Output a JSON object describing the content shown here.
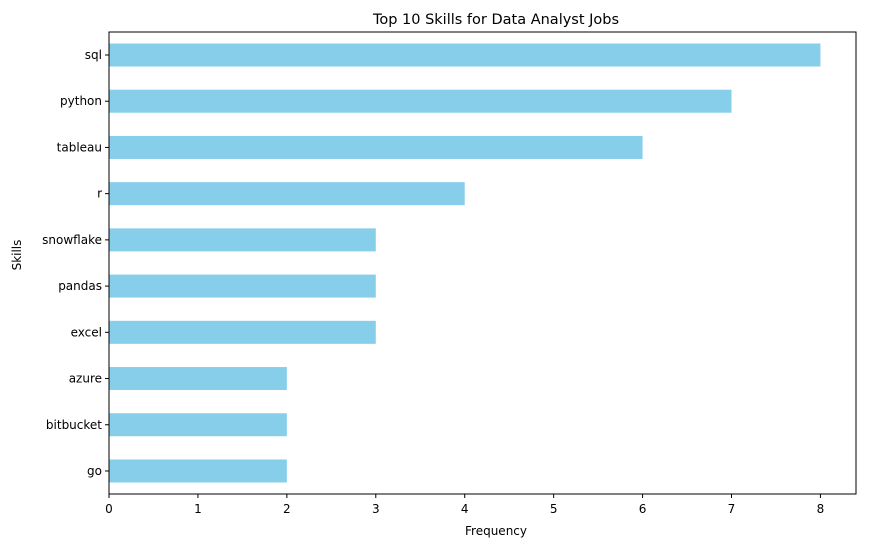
{
  "chart_data": {
    "type": "bar",
    "orientation": "horizontal",
    "title": "Top 10 Skills for Data Analyst Jobs",
    "xlabel": "Frequency",
    "ylabel": "Skills",
    "categories": [
      "sql",
      "python",
      "tableau",
      "r",
      "snowflake",
      "pandas",
      "excel",
      "azure",
      "bitbucket",
      "go"
    ],
    "values": [
      8,
      7,
      6,
      4,
      3,
      3,
      3,
      2,
      2,
      2
    ],
    "xlim": [
      0,
      8.4
    ],
    "xticks": [
      0,
      1,
      2,
      3,
      4,
      5,
      6,
      7,
      8
    ],
    "bar_color": "#87ceeb",
    "grid": false,
    "legend": false
  }
}
